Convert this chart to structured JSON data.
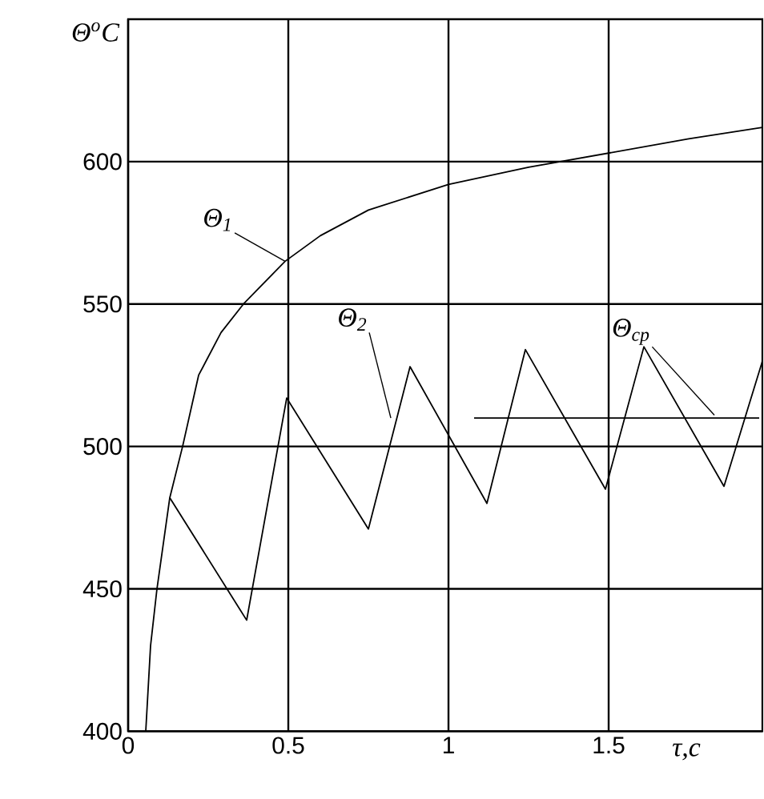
{
  "chart_data": {
    "type": "line",
    "xlabel": "τ,c",
    "ylabel": "Θ$^{o}$C",
    "xlim": [
      0,
      1.98
    ],
    "ylim": [
      400,
      650
    ],
    "xticks": [
      0,
      0.5,
      1,
      1.5
    ],
    "yticks": [
      400,
      450,
      500,
      550,
      600
    ],
    "grid": true,
    "marker": "none",
    "line_style": "solid",
    "series": [
      {
        "name": "Θ$_{1}$",
        "color": "#000000",
        "x": [
          0.055,
          0.07,
          0.09,
          0.13,
          0.17,
          0.22,
          0.29,
          0.36,
          0.49,
          0.6,
          0.75,
          1.0,
          1.25,
          1.5,
          1.75,
          1.98
        ],
        "values": [
          400,
          430,
          450,
          482,
          500,
          525,
          540,
          550,
          565,
          574,
          583,
          592,
          598,
          603,
          608,
          612
        ]
      },
      {
        "name": "Θ$_{2}$",
        "color": "#000000",
        "x": [
          0.13,
          0.37,
          0.495,
          0.75,
          0.88,
          1.12,
          1.24,
          1.49,
          1.61,
          1.86,
          1.98
        ],
        "values": [
          482,
          439,
          517,
          471,
          528,
          480,
          534,
          485,
          535,
          486,
          530
        ]
      },
      {
        "name": "Θ$_{cp}$",
        "color": "#000000",
        "x": [
          1.08,
          1.97
        ],
        "values": [
          510,
          510
        ]
      }
    ]
  }
}
